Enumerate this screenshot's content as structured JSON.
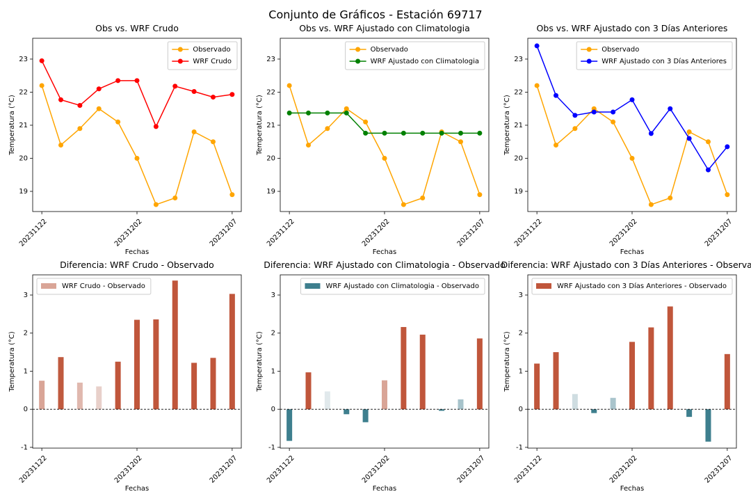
{
  "title": "Conjunto de Gráficos - Estación 69717",
  "chart_data": [
    {
      "type": "line",
      "title": "Obs vs. WRF Crudo",
      "x_label": "Fechas",
      "y_label": "Temperatura (°C)",
      "categories": [
        "20231122",
        null,
        null,
        null,
        null,
        "20231202",
        null,
        null,
        null,
        null,
        "20231207"
      ],
      "series": [
        {
          "name": "Observado",
          "color": "#ffa500",
          "values": [
            22.2,
            20.4,
            20.9,
            21.5,
            21.1,
            20.0,
            18.6,
            18.8,
            20.8,
            20.5,
            18.9
          ]
        },
        {
          "name": "WRF Crudo",
          "color": "#ff0000",
          "values": [
            22.95,
            21.77,
            21.6,
            22.1,
            22.35,
            22.35,
            20.96,
            22.18,
            22.02,
            21.85,
            21.93
          ]
        }
      ],
      "ylim": [
        18.39,
        23.63
      ],
      "yticks": [
        19,
        20,
        21,
        22,
        23
      ],
      "legend": "upper right"
    },
    {
      "type": "line",
      "title": "Obs vs. WRF Ajustado con Climatologia",
      "x_label": "Fechas",
      "y_label": "Temperatura (°C)",
      "categories": [
        "20231122",
        null,
        null,
        null,
        null,
        "20231202",
        null,
        null,
        null,
        null,
        "20231207"
      ],
      "series": [
        {
          "name": "Observado",
          "color": "#ffa500",
          "values": [
            22.2,
            20.4,
            20.9,
            21.5,
            21.1,
            20.0,
            18.6,
            18.8,
            20.8,
            20.5,
            18.9
          ]
        },
        {
          "name": "WRF Ajustado con Climatologia",
          "color": "#008000",
          "values": [
            21.37,
            21.37,
            21.37,
            21.37,
            20.76,
            20.76,
            20.76,
            20.76,
            20.76,
            20.76,
            20.76
          ]
        }
      ],
      "ylim": [
        18.39,
        23.63
      ],
      "yticks": [
        19,
        20,
        21,
        22,
        23
      ],
      "legend": "upper right"
    },
    {
      "type": "line",
      "title": "Obs vs. WRF Ajustado con 3 Días Anteriores",
      "x_label": "Fechas",
      "y_label": "Temperatura (°C)",
      "categories": [
        "20231122",
        null,
        null,
        null,
        null,
        "20231202",
        null,
        null,
        null,
        null,
        "20231207"
      ],
      "series": [
        {
          "name": "Observado",
          "color": "#ffa500",
          "values": [
            22.2,
            20.4,
            20.9,
            21.5,
            21.1,
            20.0,
            18.6,
            18.8,
            20.8,
            20.5,
            18.9
          ]
        },
        {
          "name": "WRF Ajustado con 3 Días Anteriores",
          "color": "#0000ff",
          "values": [
            23.4,
            21.9,
            21.3,
            21.4,
            21.4,
            21.77,
            20.75,
            21.5,
            20.6,
            19.65,
            20.35
          ]
        }
      ],
      "ylim": [
        18.39,
        23.63
      ],
      "yticks": [
        19,
        20,
        21,
        22,
        23
      ],
      "legend": "upper right"
    },
    {
      "type": "bar",
      "title": "Diferencia: WRF Crudo - Observado",
      "x_label": "Fechas",
      "y_label": "Temperatura (°C)",
      "categories": [
        "20231122",
        null,
        null,
        null,
        null,
        "20231202",
        null,
        null,
        null,
        null,
        "20231207"
      ],
      "series": [
        {
          "name": "WRF Crudo - Observado",
          "color": "#d9a597",
          "colors": [
            "#d9a597",
            "#c05a3f",
            "#e0b8ae",
            "#e8d0ca",
            "#c0563b",
            "#c0563b",
            "#c0563b",
            "#c0563b",
            "#c0563b",
            "#c0563b",
            "#c0563b"
          ],
          "values": [
            0.75,
            1.37,
            0.7,
            0.6,
            1.25,
            2.35,
            2.36,
            3.38,
            1.22,
            1.35,
            3.03
          ]
        }
      ],
      "ylim": [
        -1.02,
        3.53
      ],
      "yticks": [
        -1,
        0,
        1,
        2,
        3
      ],
      "reference_line": 0,
      "legend": "upper left"
    },
    {
      "type": "bar",
      "title": "Diferencia: WRF Ajustado con Climatologia - Observado",
      "x_label": "Fechas",
      "y_label": "Temperatura (°C)",
      "categories": [
        "20231122",
        null,
        null,
        null,
        null,
        "20231202",
        null,
        null,
        null,
        null,
        "20231207"
      ],
      "series": [
        {
          "name": "WRF Ajustado con Climatologia - Observado",
          "color": "#3e7f8e",
          "colors": [
            "#3e7f8e",
            "#c0563b",
            "#e1e9ec",
            "#3e7f8e",
            "#3e7f8e",
            "#d9a597",
            "#c0563b",
            "#c0563b",
            "#3e7f8e",
            "#a7c3cb",
            "#c0563b"
          ],
          "values": [
            -0.83,
            0.97,
            0.47,
            -0.13,
            -0.34,
            0.76,
            2.16,
            1.96,
            -0.04,
            0.26,
            1.86
          ]
        }
      ],
      "ylim": [
        -1.02,
        3.53
      ],
      "yticks": [
        -1,
        0,
        1,
        2,
        3
      ],
      "reference_line": 0,
      "legend": "upper right"
    },
    {
      "type": "bar",
      "title": "Diferencia: WRF Ajustado con 3 Días Anteriores - Observado",
      "x_label": "Fechas",
      "y_label": "Temperatura (°C)",
      "categories": [
        "20231122",
        null,
        null,
        null,
        null,
        "20231202",
        null,
        null,
        null,
        null,
        "20231207"
      ],
      "series": [
        {
          "name": "WRF Ajustado con 3 Días Anteriores - Observado",
          "color": "#c0563b",
          "colors": [
            "#c0563b",
            "#c0563b",
            "#cfdde1",
            "#3e7f8e",
            "#a9c4cc",
            "#c0563b",
            "#c0563b",
            "#c0563b",
            "#3e7f8e",
            "#3e7f8e",
            "#c0563b"
          ],
          "values": [
            1.2,
            1.5,
            0.4,
            -0.1,
            0.3,
            1.77,
            2.15,
            2.7,
            -0.2,
            -0.85,
            1.45
          ]
        }
      ],
      "ylim": [
        -1.02,
        3.53
      ],
      "yticks": [
        -1,
        0,
        1,
        2,
        3
      ],
      "reference_line": 0,
      "legend": "upper right"
    }
  ]
}
